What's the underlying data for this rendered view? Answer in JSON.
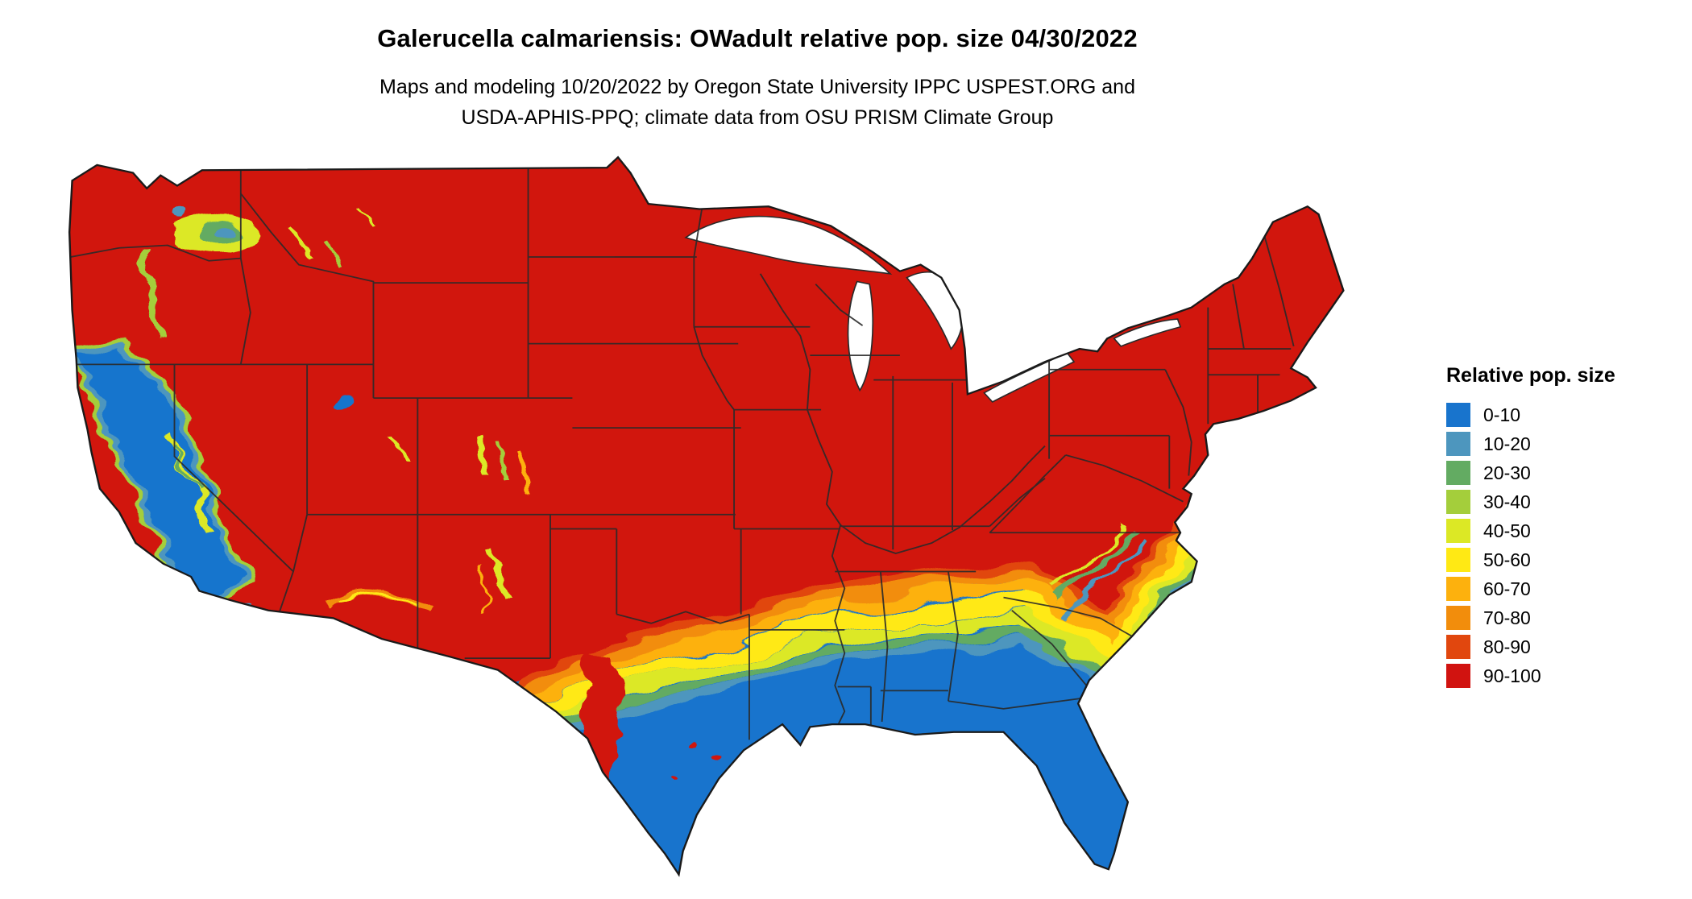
{
  "title": "Galerucella calmariensis: OWadult relative pop. size 04/30/2022",
  "subtitle_line1": "Maps and modeling 10/20/2022 by Oregon State University IPPC USPEST.ORG and",
  "subtitle_line2": "USDA-APHIS-PPQ; climate data from OSU PRISM Climate Group",
  "legend": {
    "title": "Relative pop. size",
    "items": [
      {
        "label": "0-10",
        "color": "#1874CD"
      },
      {
        "label": "10-20",
        "color": "#4D96BE"
      },
      {
        "label": "20-30",
        "color": "#63AB62"
      },
      {
        "label": "30-40",
        "color": "#A4CE3B"
      },
      {
        "label": "40-50",
        "color": "#DCE825"
      },
      {
        "label": "50-60",
        "color": "#FFE914"
      },
      {
        "label": "60-70",
        "color": "#FDB10D"
      },
      {
        "label": "70-80",
        "color": "#F28D0C"
      },
      {
        "label": "80-90",
        "color": "#E1470E"
      },
      {
        "label": "90-100",
        "color": "#D11310"
      }
    ]
  },
  "map": {
    "border_color": "#2a2a2a",
    "water_color": "#ffffff"
  }
}
